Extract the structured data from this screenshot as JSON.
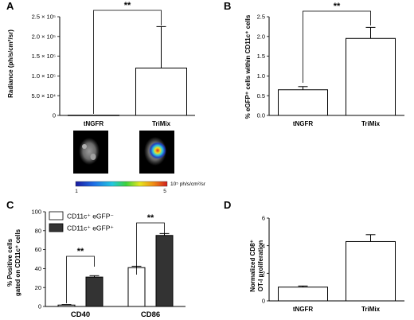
{
  "charts": [
    {
      "panel_label": "A",
      "type": "bar",
      "categories": [
        "tNGFR",
        "TriMix"
      ],
      "values": [
        500,
        120000
      ],
      "errors": [
        0,
        105000
      ],
      "ylabel": "Radiance (ph/s/cm²/sr)",
      "ylim": [
        0,
        250000
      ],
      "yticks": [
        0,
        50000,
        100000,
        150000,
        200000,
        250000
      ],
      "ytick_labels": [
        "0",
        "5.0 × 10⁴",
        "1.0 × 10⁵",
        "1.5 × 10⁵",
        "2.0 × 10⁵",
        "2.5 × 10⁵"
      ],
      "bar_color": "#ffffff",
      "significance": "**",
      "colorbar": {
        "min_label": "1",
        "max_label": "5",
        "unit_label": "10⁵ ph/s/cm²/sr"
      }
    },
    {
      "panel_label": "B",
      "type": "bar",
      "categories": [
        "tNGFR",
        "TriMix"
      ],
      "values": [
        0.65,
        1.95
      ],
      "errors": [
        0.08,
        0.28
      ],
      "ylabel": "% eGFP⁺ cells within CD11c⁺ cells",
      "ylim": [
        0,
        2.5
      ],
      "yticks": [
        0.0,
        0.5,
        1.0,
        1.5,
        2.0,
        2.5
      ],
      "ytick_labels": [
        "0.0",
        "0.5",
        "1.0",
        "1.5",
        "2.0",
        "2.5"
      ],
      "bar_color": "#ffffff",
      "significance": "**"
    },
    {
      "panel_label": "C",
      "type": "bar",
      "categories": [
        "CD40",
        "CD86"
      ],
      "series": [
        {
          "name": "CD11c⁺ eGFP⁻",
          "values": [
            1.5,
            41
          ],
          "errors": [
            0.5,
            1.5
          ],
          "color": "#ffffff"
        },
        {
          "name": "CD11c⁺ eGFP⁺",
          "values": [
            31,
            75
          ],
          "errors": [
            1.5,
            2
          ],
          "color": "#333333"
        }
      ],
      "ylabel_lines": [
        "% Positive cells",
        "gated on CD11c⁺ cells"
      ],
      "ylim": [
        0,
        100
      ],
      "yticks": [
        0,
        20,
        40,
        60,
        80,
        100
      ],
      "ytick_labels": [
        "0",
        "20",
        "40",
        "60",
        "80",
        "100"
      ],
      "significance": [
        "**",
        "**"
      ],
      "legend_position": "top-left"
    },
    {
      "panel_label": "D",
      "type": "bar",
      "categories": [
        "tNGFR",
        "TriMix"
      ],
      "values": [
        1.0,
        4.3
      ],
      "errors": [
        0.08,
        0.5
      ],
      "ylabel_lines": [
        "Normalized CD8⁺",
        "OT-I proliferation"
      ],
      "ylim": [
        0,
        6
      ],
      "yticks": [
        0,
        2,
        4,
        6
      ],
      "ytick_labels": [
        "0",
        "2",
        "4",
        "6"
      ],
      "bar_color": "#ffffff"
    }
  ]
}
